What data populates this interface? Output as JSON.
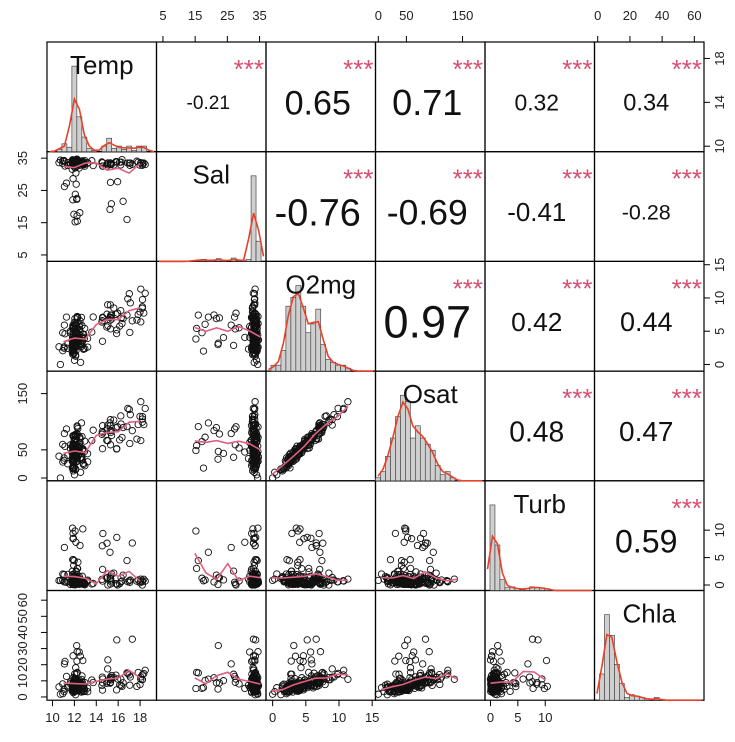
{
  "chart_data": {
    "type": "scatter",
    "variables": [
      "Temp",
      "Sal",
      "O2mg",
      "Osat",
      "Turb",
      "Chla"
    ],
    "correlations": [
      {
        "row": "Temp",
        "col": "Sal",
        "r": "-0.21",
        "stars": "***"
      },
      {
        "row": "Temp",
        "col": "O2mg",
        "r": "0.65",
        "stars": "***"
      },
      {
        "row": "Temp",
        "col": "Osat",
        "r": "0.71",
        "stars": "***"
      },
      {
        "row": "Temp",
        "col": "Turb",
        "r": "0.32",
        "stars": "***"
      },
      {
        "row": "Temp",
        "col": "Chla",
        "r": "0.34",
        "stars": "***"
      },
      {
        "row": "Sal",
        "col": "O2mg",
        "r": "-0.76",
        "stars": "***"
      },
      {
        "row": "Sal",
        "col": "Osat",
        "r": "-0.69",
        "stars": "***"
      },
      {
        "row": "Sal",
        "col": "Turb",
        "r": "-0.41",
        "stars": "***"
      },
      {
        "row": "Sal",
        "col": "Chla",
        "r": "-0.28",
        "stars": "***"
      },
      {
        "row": "O2mg",
        "col": "Osat",
        "r": "0.97",
        "stars": "***"
      },
      {
        "row": "O2mg",
        "col": "Turb",
        "r": "0.42",
        "stars": "***"
      },
      {
        "row": "O2mg",
        "col": "Chla",
        "r": "0.44",
        "stars": "***"
      },
      {
        "row": "Osat",
        "col": "Turb",
        "r": "0.48",
        "stars": "***"
      },
      {
        "row": "Osat",
        "col": "Chla",
        "r": "0.47",
        "stars": "***"
      },
      {
        "row": "Turb",
        "col": "Chla",
        "r": "0.59",
        "stars": "***"
      }
    ],
    "axes": {
      "top": [
        {
          "col": "Sal",
          "ticks": [
            "5",
            "15",
            "25",
            "35"
          ],
          "range": [
            3,
            37
          ]
        },
        {
          "col": "Osat",
          "ticks": [
            "0",
            "50",
            "150"
          ],
          "range": [
            -5,
            190
          ]
        },
        {
          "col": "Chla",
          "ticks": [
            "0",
            "20",
            "40",
            "60"
          ],
          "range": [
            -2,
            66
          ]
        }
      ],
      "bottom": [
        {
          "col": "Temp",
          "ticks": [
            "10",
            "12",
            "14",
            "16",
            "18"
          ],
          "range": [
            9.5,
            19.5
          ]
        },
        {
          "col": "O2mg",
          "ticks": [
            "0",
            "5",
            "10",
            "15"
          ],
          "range": [
            -1,
            15.5
          ]
        },
        {
          "col": "Turb",
          "ticks": [
            "0",
            "5",
            "10"
          ],
          "range": [
            -1,
            19
          ]
        }
      ],
      "left": [
        {
          "row": "Sal",
          "ticks": [
            "5",
            "15",
            "25",
            "35"
          ],
          "range": [
            3,
            37
          ]
        },
        {
          "row": "Osat",
          "ticks": [
            "0",
            "50",
            "150"
          ],
          "range": [
            -5,
            190
          ]
        },
        {
          "row": "Chla",
          "ticks": [
            "0",
            "10",
            "20",
            "30",
            "40",
            "50",
            "60"
          ],
          "range": [
            -2,
            66
          ]
        }
      ],
      "right": [
        {
          "row": "Temp",
          "ticks": [
            "10",
            "14",
            "18"
          ],
          "range": [
            9.5,
            19.5
          ]
        },
        {
          "row": "O2mg",
          "ticks": [
            "0",
            "5",
            "10",
            "15"
          ],
          "range": [
            -1,
            15.5
          ]
        },
        {
          "row": "Turb",
          "ticks": [
            "0",
            "5",
            "10"
          ],
          "range": [
            -1,
            19
          ]
        }
      ]
    },
    "colors": {
      "points": "#111111",
      "smooth": "#e0607e",
      "stars": "#d94f70",
      "hist_fill": "#cfcfcf",
      "density": "#e8402a"
    }
  }
}
